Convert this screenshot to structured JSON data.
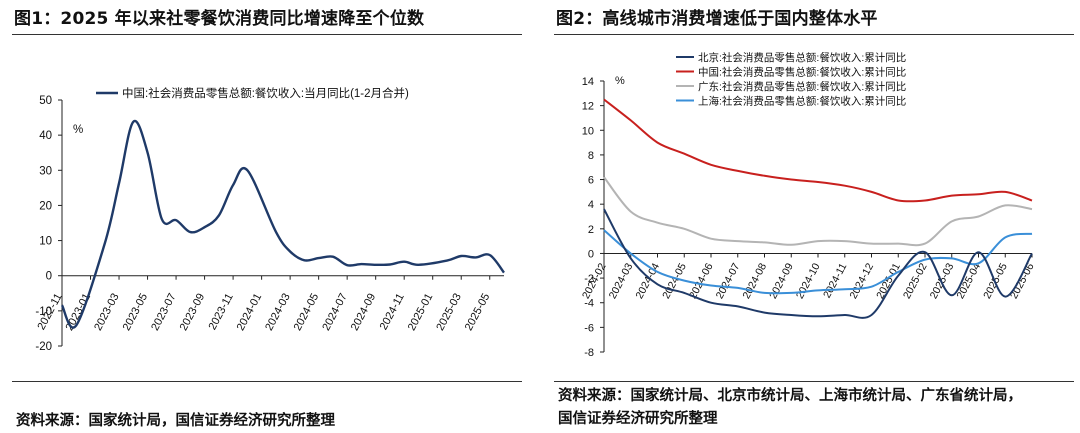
{
  "left_panel": {
    "title": "图1：2025 年以来社零餐饮消费同比增速降至个位数",
    "source": "资料来源：国家统计局，国信证券经济研究所整理"
  },
  "right_panel": {
    "title": "图2：高线城市消费增速低于国内整体水平",
    "source_line1": "资料来源：国家统计局、北京市统计局、上海市统计局、广东省统计局，",
    "source_line2": "国信证券经济研究所整理"
  },
  "chart_data": [
    {
      "type": "line",
      "unit": "%",
      "ylim": [
        -20,
        50
      ],
      "yticks": [
        -20,
        -10,
        0,
        10,
        20,
        30,
        40,
        50
      ],
      "x_tick_labels": [
        "2022-11",
        "2023-01",
        "2023-03",
        "2023-05",
        "2023-07",
        "2023-09",
        "2023-11",
        "2024-01",
        "2024-03",
        "2024-05",
        "2024-07",
        "2024-09",
        "2024-11",
        "2025-01",
        "2025-03",
        "2025-05"
      ],
      "legend_placement": "top",
      "series": [
        {
          "name": "中国:社会消费品零售总额:餐饮收入:当月同比(1-2月合并)",
          "color": "#1f3a68",
          "x": [
            "2022-11",
            "2022-12",
            "2023-02",
            "2023-03",
            "2023-04",
            "2023-05",
            "2023-06",
            "2023-07",
            "2023-08",
            "2023-09",
            "2023-10",
            "2023-11",
            "2023-12",
            "2024-02",
            "2024-03",
            "2024-04",
            "2024-05",
            "2024-06",
            "2024-07",
            "2024-08",
            "2024-09",
            "2024-10",
            "2024-11",
            "2024-12",
            "2025-02",
            "2025-03",
            "2025-04",
            "2025-05",
            "2025-06"
          ],
          "values": [
            -8.4,
            -14.1,
            9.2,
            26.3,
            43.8,
            35.1,
            16.1,
            15.8,
            12.4,
            13.8,
            17.1,
            25.8,
            30.0,
            12.5,
            6.9,
            4.4,
            5.0,
            5.4,
            3.0,
            3.3,
            3.1,
            3.2,
            4.0,
            3.1,
            4.3,
            5.6,
            5.2,
            5.9,
            0.9
          ]
        }
      ]
    },
    {
      "type": "line",
      "unit": "%",
      "ylim": [
        -8,
        14
      ],
      "yticks": [
        -8,
        -6,
        -4,
        -2,
        0,
        2,
        4,
        6,
        8,
        10,
        12,
        14
      ],
      "x_tick_labels": [
        "2024-02",
        "2024-03",
        "2024-04",
        "2024-05",
        "2024-06",
        "2024-07",
        "2024-08",
        "2024-09",
        "2024-10",
        "2024-11",
        "2024-12",
        "2025-01",
        "2025-02",
        "2025-03",
        "2025-04",
        "2025-05",
        "2025-06"
      ],
      "legend_placement": "top-left",
      "series": [
        {
          "name": "北京:社会消费品零售总额:餐饮收入:累计同比",
          "color": "#1f3a68",
          "values": [
            3.6,
            -0.4,
            -2.5,
            -3.2,
            -4.0,
            -4.3,
            -4.8,
            -5.0,
            -5.1,
            -5.0,
            -5.0,
            -1.8,
            0.1,
            -3.4,
            0.1,
            -3.5,
            0.0
          ]
        },
        {
          "name": "中国:社会消费品零售总额:餐饮收入:累计同比",
          "color": "#c8201e",
          "values": [
            12.5,
            10.8,
            9.0,
            8.1,
            7.2,
            6.7,
            6.3,
            6.0,
            5.8,
            5.5,
            5.0,
            4.3,
            4.3,
            4.7,
            4.8,
            5.0,
            4.3
          ]
        },
        {
          "name": "广东:社会消费品零售总额:餐饮收入:累计同比",
          "color": "#b4b4b4",
          "values": [
            6.2,
            3.4,
            2.5,
            2.0,
            1.2,
            1.0,
            0.9,
            0.7,
            1.0,
            1.0,
            0.8,
            0.8,
            0.8,
            2.6,
            3.0,
            3.9,
            3.6
          ]
        },
        {
          "name": "上海:社会消费品零售总额:餐饮收入:累计同比",
          "color": "#3a8fd8",
          "values": [
            1.9,
            0.0,
            -1.5,
            -2.2,
            -2.6,
            -2.8,
            -3.2,
            -3.2,
            -3.0,
            -2.9,
            -2.7,
            -1.5,
            -0.5,
            -0.4,
            -0.8,
            1.3,
            1.6
          ]
        }
      ]
    }
  ]
}
